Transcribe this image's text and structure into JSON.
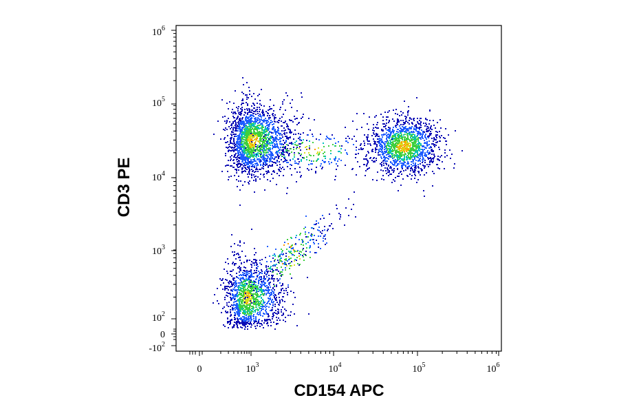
{
  "chart_data": {
    "type": "scatter",
    "plot_style": "flow cytometry density dot plot (pseudocolor)",
    "xlabel": "CD154 APC",
    "ylabel": "CD3 PE",
    "x_scale": "biexponential (log above ~1e2)",
    "y_scale": "biexponential (log above ~1e2)",
    "xlim": [
      -100,
      1000000
    ],
    "ylim": [
      -100,
      1000000
    ],
    "grid": false,
    "legend": "none",
    "x_ticks": [
      {
        "base": "0",
        "exp": ""
      },
      {
        "base": "10",
        "exp": "3"
      },
      {
        "base": "10",
        "exp": "4"
      },
      {
        "base": "10",
        "exp": "5"
      },
      {
        "base": "10",
        "exp": "6"
      }
    ],
    "y_ticks": [
      {
        "base": "-10",
        "exp": "2"
      },
      {
        "base": "0",
        "exp": ""
      },
      {
        "base": "10",
        "exp": "2"
      },
      {
        "base": "10",
        "exp": "3"
      },
      {
        "base": "10",
        "exp": "4"
      },
      {
        "base": "10",
        "exp": "5"
      },
      {
        "base": "10",
        "exp": "6"
      }
    ],
    "density_colors": [
      "#0a0ab4",
      "#1e5cff",
      "#00c0c0",
      "#3ecf3e",
      "#d8e020",
      "#ff9a00"
    ],
    "populations": [
      {
        "x_center": 1000,
        "y_center": 30000,
        "x_spread_decades": 0.25,
        "y_spread_decades": 0.25,
        "events": 1900
      },
      {
        "x_center": 70000,
        "y_center": 25000,
        "x_spread_decades": 0.22,
        "y_spread_decades": 0.2,
        "events": 1500
      },
      {
        "x_center": 800,
        "y_center": 200,
        "x_spread_decades": 0.25,
        "y_spread_decades": 0.25,
        "events": 1300
      },
      {
        "x_center": 3000,
        "y_center": 800,
        "x_spread_decades": 0.3,
        "y_spread_decades": 0.3,
        "events": 300
      },
      {
        "x_center": 5000,
        "y_center": 22000,
        "x_spread_decades": 0.4,
        "y_spread_decades": 0.15,
        "events": 240
      }
    ]
  }
}
